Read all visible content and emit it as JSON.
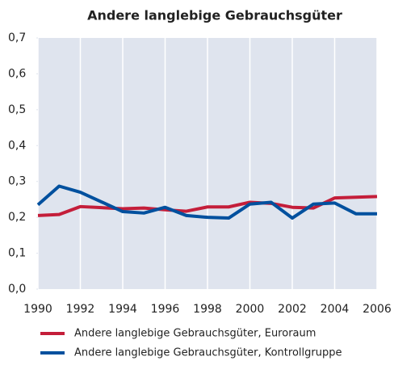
{
  "chart_data": {
    "type": "line",
    "title": "Andere langlebige Gebrauchsgüter",
    "x": [
      1990,
      1991,
      1992,
      1993,
      1994,
      1995,
      1996,
      1997,
      1998,
      1999,
      2000,
      2001,
      2002,
      2003,
      2004,
      2005,
      2006
    ],
    "series": [
      {
        "name": "Andere langlebige Gebrauchsgüter, Euroraum",
        "color": "#c41e3a",
        "values": [
          0.205,
          0.208,
          0.23,
          0.227,
          0.224,
          0.226,
          0.221,
          0.217,
          0.229,
          0.229,
          0.242,
          0.239,
          0.228,
          0.226,
          0.254,
          0.256,
          0.258
        ]
      },
      {
        "name": "Andere langlebige Gebrauchsgüter, Kontrollgruppe",
        "color": "#00509e",
        "values": [
          0.235,
          0.287,
          0.27,
          0.243,
          0.216,
          0.212,
          0.228,
          0.205,
          0.2,
          0.198,
          0.237,
          0.242,
          0.198,
          0.237,
          0.24,
          0.21,
          0.21
        ]
      }
    ],
    "xlim": [
      1990,
      2006
    ],
    "xticks": [
      1990,
      1992,
      1994,
      1996,
      1998,
      2000,
      2002,
      2004,
      2006
    ],
    "ylim": [
      0,
      0.7
    ],
    "yticks": [
      {
        "value": 0,
        "label": "0,0"
      },
      {
        "value": 0.1,
        "label": "0,1"
      },
      {
        "value": 0.2,
        "label": "0,2"
      },
      {
        "value": 0.3,
        "label": "0,3"
      },
      {
        "value": 0.4,
        "label": "0,4"
      },
      {
        "value": 0.5,
        "label": "0,5"
      },
      {
        "value": 0.6,
        "label": "0,6"
      },
      {
        "value": 0.7,
        "label": "0,7"
      }
    ],
    "grid": true
  }
}
